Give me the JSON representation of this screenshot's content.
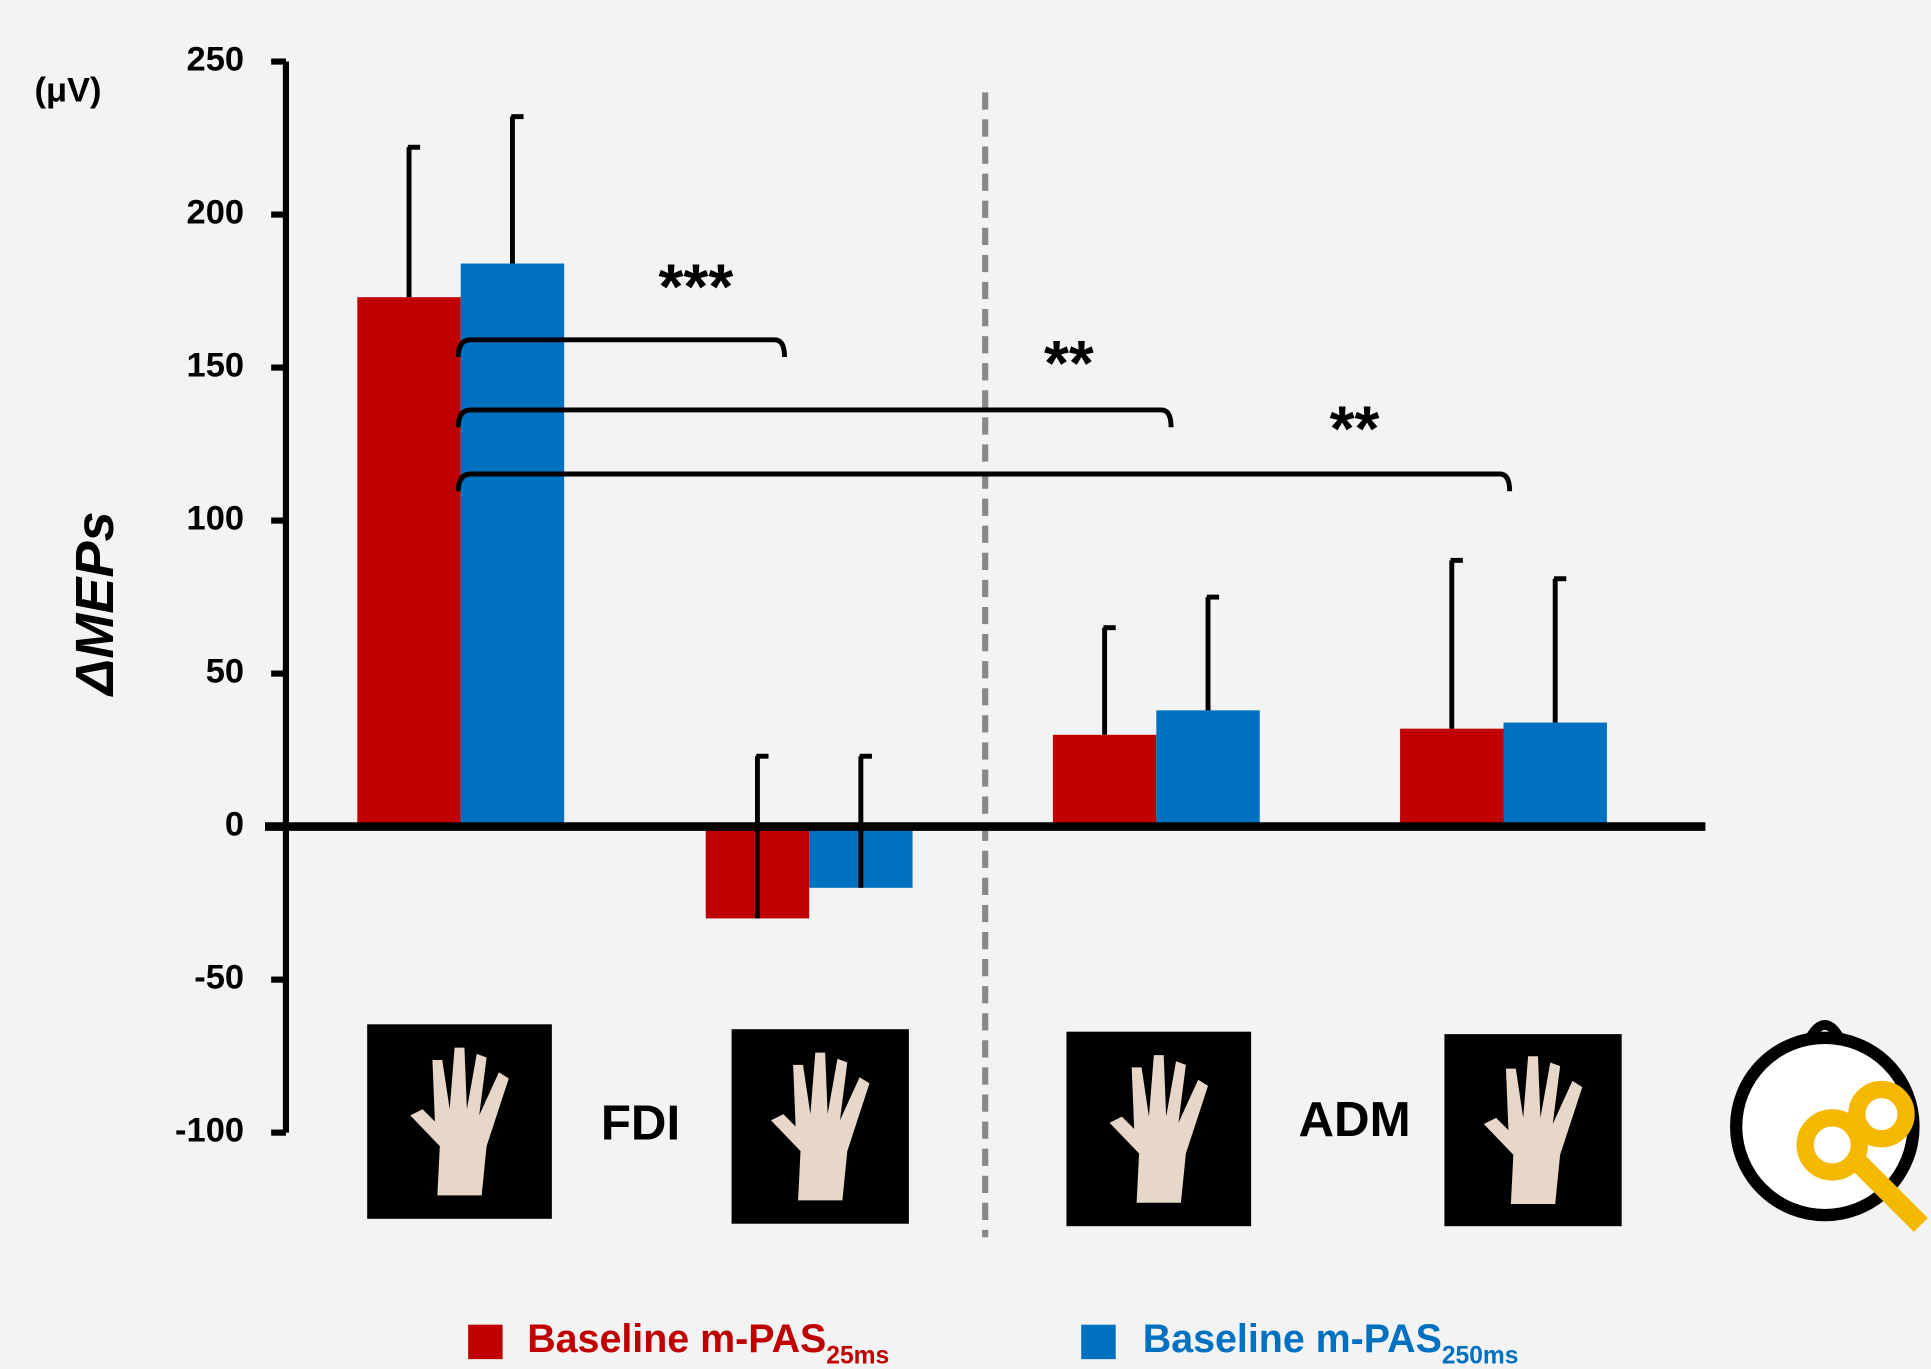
{
  "chart_data": {
    "type": "bar",
    "y_label": "ΔMEPs",
    "y_unit": "(μV)",
    "categories": [
      null,
      null,
      null,
      null
    ],
    "group_labels": [
      "FDI",
      "ADM"
    ],
    "series": [
      {
        "name": "Baseline m-PAS",
        "subscript": "25ms",
        "color": "#c00000",
        "values": [
          173,
          -30,
          30,
          32
        ],
        "errors": [
          49,
          53,
          35,
          55
        ]
      },
      {
        "name": "Baseline m-PAS",
        "subscript": "250ms",
        "color": "#0070c0",
        "values": [
          184,
          -20,
          38,
          34
        ],
        "errors": [
          48,
          43,
          37,
          47
        ]
      }
    ],
    "ylim": [
      -100,
      250
    ],
    "yticks": [
      -100,
      -50,
      0,
      50,
      100,
      150,
      200,
      250
    ],
    "significance": [
      "***",
      "**",
      "**"
    ]
  }
}
